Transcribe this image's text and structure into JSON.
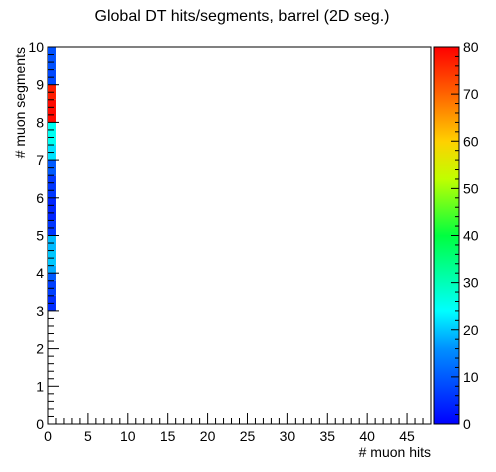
{
  "chart_data": {
    "type": "heatmap",
    "title": "Global DT hits/segments, barrel (2D seg.)",
    "xlabel": "# muon hits",
    "ylabel": "# muon segments",
    "xlim": [
      0,
      48
    ],
    "ylim": [
      0,
      10
    ],
    "x_ticks": [
      0,
      5,
      10,
      15,
      20,
      25,
      30,
      35,
      40,
      45
    ],
    "y_ticks": [
      0,
      1,
      2,
      3,
      4,
      5,
      6,
      7,
      8,
      9,
      10
    ],
    "zlim": [
      0,
      80
    ],
    "z_ticks": [
      0,
      10,
      20,
      30,
      40,
      50,
      60,
      70,
      80
    ],
    "colormap": "rainbow",
    "grid": false,
    "cells": [
      {
        "x": [
          0,
          1
        ],
        "y": [
          3.0,
          3.4
        ],
        "z": 5
      },
      {
        "x": [
          0,
          1
        ],
        "y": [
          3.4,
          3.8
        ],
        "z": 7
      },
      {
        "x": [
          0,
          1
        ],
        "y": [
          3.8,
          4.0
        ],
        "z": 10
      },
      {
        "x": [
          0,
          1
        ],
        "y": [
          4.0,
          4.2
        ],
        "z": 18
      },
      {
        "x": [
          0,
          1
        ],
        "y": [
          4.2,
          4.6
        ],
        "z": 20
      },
      {
        "x": [
          0,
          1
        ],
        "y": [
          4.6,
          5.0
        ],
        "z": 19
      },
      {
        "x": [
          0,
          1
        ],
        "y": [
          5.0,
          5.4
        ],
        "z": 6
      },
      {
        "x": [
          0,
          1
        ],
        "y": [
          5.4,
          6.0
        ],
        "z": 4
      },
      {
        "x": [
          0,
          1
        ],
        "y": [
          6.0,
          6.6
        ],
        "z": 6
      },
      {
        "x": [
          0,
          1
        ],
        "y": [
          6.6,
          7.0
        ],
        "z": 10
      },
      {
        "x": [
          0,
          1
        ],
        "y": [
          7.0,
          7.4
        ],
        "z": 22
      },
      {
        "x": [
          0,
          1
        ],
        "y": [
          7.4,
          8.0
        ],
        "z": 25
      },
      {
        "x": [
          0,
          1
        ],
        "y": [
          8.0,
          8.6
        ],
        "z": 79
      },
      {
        "x": [
          0,
          1
        ],
        "y": [
          8.6,
          9.0
        ],
        "z": 77
      },
      {
        "x": [
          0,
          1
        ],
        "y": [
          9.0,
          9.4
        ],
        "z": 8
      },
      {
        "x": [
          0,
          1
        ],
        "y": [
          9.4,
          10.0
        ],
        "z": 9
      }
    ]
  }
}
